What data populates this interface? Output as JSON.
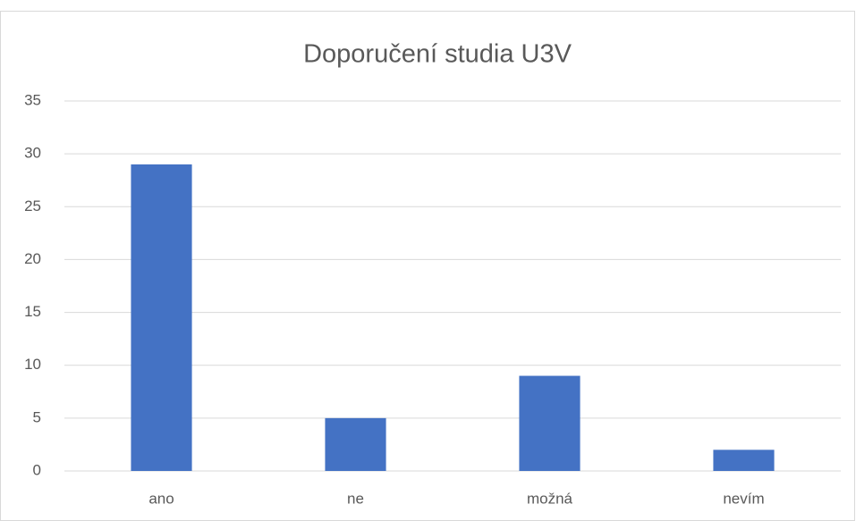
{
  "chart_data": {
    "type": "bar",
    "title": "Doporučení studia U3V",
    "categories": [
      "ano",
      "ne",
      "možná",
      "nevím"
    ],
    "values": [
      29,
      5,
      9,
      2
    ],
    "color": "#4472c4",
    "ylim": [
      0,
      35
    ],
    "yticks": [
      0,
      5,
      10,
      15,
      20,
      25,
      30,
      35
    ],
    "grid": true
  }
}
